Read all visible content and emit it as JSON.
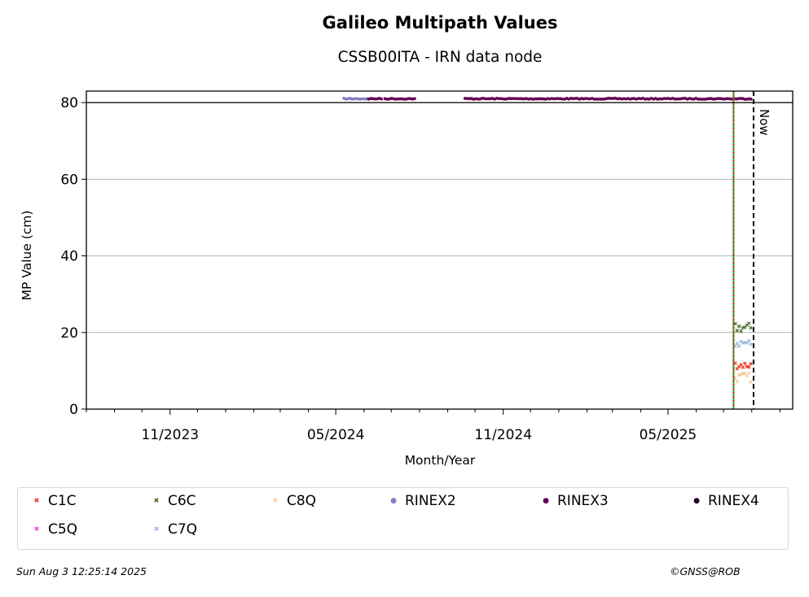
{
  "chart_data": {
    "type": "scatter",
    "title": "Galileo Multipath Values",
    "subtitle": "CSSB00ITA - IRN data node",
    "xlabel": "Month/Year",
    "ylabel": "MP Value (cm)",
    "x_ticks": [
      "11/2023",
      "05/2024",
      "11/2024",
      "05/2025"
    ],
    "y_ticks": [
      0,
      20,
      40,
      60,
      80
    ],
    "ylim": [
      0,
      83
    ],
    "xlim": [
      "2023-08-01",
      "2025-09-15"
    ],
    "grid": "horizontal",
    "legend_position": "bottom",
    "annotations": [
      {
        "text": "Now",
        "date": "2025-08-03"
      }
    ],
    "vertical_lines": [
      {
        "date": "2025-07-12",
        "color": "#2ca02c",
        "style": "solid"
      },
      {
        "date": "2025-07-12",
        "color": "#d62728",
        "style": "dotted"
      },
      {
        "date": "2025-08-03",
        "color": "#000000",
        "style": "dashed"
      }
    ],
    "legend": [
      {
        "name": "C1C",
        "color": "#ee3322",
        "marker": "x"
      },
      {
        "name": "C6C",
        "color": "#4a6f2a",
        "marker": "x"
      },
      {
        "name": "C8Q",
        "color": "#f5c9a0",
        "marker": "x"
      },
      {
        "name": "RINEX2",
        "color": "#8080c0",
        "marker": "dot"
      },
      {
        "name": "RINEX3",
        "color": "#660055",
        "marker": "dot"
      },
      {
        "name": "RINEX4",
        "color": "#1a0020",
        "marker": "dot"
      },
      {
        "name": "C5Q",
        "color": "#ee44ee",
        "marker": "x"
      },
      {
        "name": "C7Q",
        "color": "#99bbdd",
        "marker": "x"
      }
    ],
    "series": [
      {
        "name": "C6C",
        "x_range": [
          "2025-07-12",
          "2025-08-01"
        ],
        "y_range": [
          20,
          22.5
        ]
      },
      {
        "name": "C7Q",
        "x_range": [
          "2025-07-12",
          "2025-08-01"
        ],
        "y_range": [
          16,
          18.5
        ]
      },
      {
        "name": "C1C",
        "x_range": [
          "2025-07-12",
          "2025-08-01"
        ],
        "y_range": [
          10.5,
          12.5
        ]
      },
      {
        "name": "C8Q",
        "x_range": [
          "2025-07-12",
          "2025-08-01"
        ],
        "y_range": [
          7,
          9.5
        ]
      },
      {
        "name": "RINEX2",
        "y": 81,
        "x_range": [
          "2024-05-10",
          "2024-06-06"
        ]
      },
      {
        "name": "RINEX3",
        "y": 81,
        "x_ranges": [
          [
            "2024-06-06",
            "2024-06-20"
          ],
          [
            "2024-06-24",
            "2024-07-28"
          ],
          [
            "2024-09-20",
            "2025-08-01"
          ]
        ]
      }
    ]
  },
  "footer": {
    "date": "Sun Aug  3 12:25:14 2025",
    "copyright": "©GNSS@ROB"
  }
}
